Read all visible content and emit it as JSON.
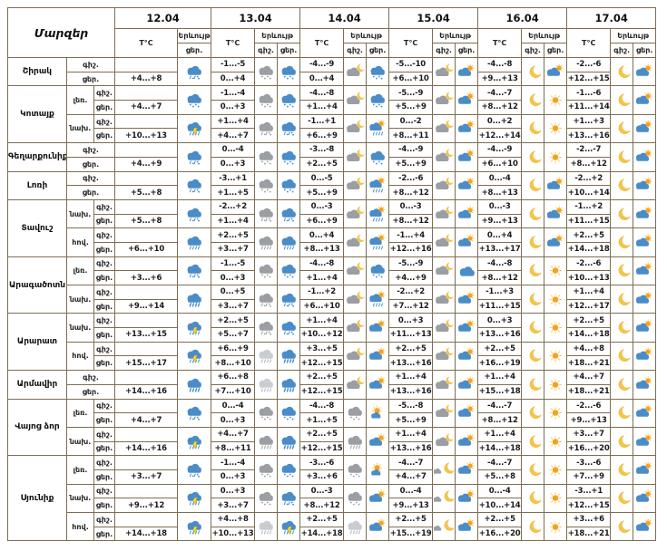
{
  "header": {
    "regions_label": "Մարզեր",
    "dates": [
      "12.04",
      "13.04",
      "14.04",
      "15.04",
      "16.04",
      "17.04"
    ],
    "temp_label": "T°C",
    "phenomenon_label": "Երևույթ",
    "night_label": "գիշ.",
    "day_label": "ցեր."
  },
  "colors": {
    "border": "#7d6e52",
    "cloud_blue": "#4a8cc7",
    "cloud_gray": "#9b9ea3",
    "cloud_lightgray": "#c9cdd2",
    "lightgray_precip": "#aab4bd",
    "sun_moon_yellow": "#f5c544",
    "sun_core_orange": "#f6a21f",
    "lightning_yellow": "#f9d81f",
    "text": "#1a1a1a"
  },
  "regions": [
    {
      "name": "Շիրակ",
      "rows": [
        {
          "zone": null,
          "cells": [
            {
              "tn": "",
              "td": "+4...+8",
              "icn": null,
              "icd": "cloud-sleet-blue"
            },
            {
              "tn": "-1...-5",
              "td": "0...+4",
              "icn": "cloud-snow-gray",
              "icd": "cloud-snow-blue"
            },
            {
              "tn": "-4...-9",
              "td": "0...+4",
              "icn": "cloud-moon",
              "icd": "cloud-snow-blue"
            },
            {
              "tn": "-5...-10",
              "td": "+6...+10",
              "icn": "cloud-moon",
              "icd": "cloud-sun"
            },
            {
              "tn": "-4...-8",
              "td": "+9...+13",
              "icn": "moon",
              "icd": "cloud-sun"
            },
            {
              "tn": "-2...-6",
              "td": "+12...+15",
              "icn": "moon",
              "icd": "cloud-sun"
            }
          ]
        }
      ]
    },
    {
      "name": "Կոտայք",
      "rows": [
        {
          "zone": "լեռ.",
          "cells": [
            {
              "tn": "",
              "td": "+4...+7",
              "icn": null,
              "icd": "cloud-snow-blue"
            },
            {
              "tn": "-1...-4",
              "td": "0...+3",
              "icn": "cloud-snow-gray",
              "icd": "cloud-snow-blue"
            },
            {
              "tn": "-4...-8",
              "td": "+1...+4",
              "icn": "cloud-moon",
              "icd": "cloud-snow-blue"
            },
            {
              "tn": "-5...-9",
              "td": "+5...+9",
              "icn": "cloud-moon",
              "icd": "cloud-sun"
            },
            {
              "tn": "-4...-7",
              "td": "+8...+12",
              "icn": "moon",
              "icd": "sun"
            },
            {
              "tn": "-1...-6",
              "td": "+11...+14",
              "icn": "moon",
              "icd": "cloud-sun"
            }
          ]
        },
        {
          "zone": "նախ.",
          "cells": [
            {
              "tn": "",
              "td": "+10...+13",
              "icn": null,
              "icd": "cloud-thunder-blue"
            },
            {
              "tn": "+1...+4",
              "td": "+4...+7",
              "icn": "cloud-sleet-gray",
              "icd": "cloud-sleet-blue"
            },
            {
              "tn": "-1...+1",
              "td": "+6...+9",
              "icn": "cloud-moon",
              "icd": "cloud-sun-rain"
            },
            {
              "tn": "0...-2",
              "td": "+8...+11",
              "icn": "cloud-moon",
              "icd": "cloud-sun"
            },
            {
              "tn": "0...+2",
              "td": "+12...+14",
              "icn": "moon",
              "icd": "sun"
            },
            {
              "tn": "+1...+3",
              "td": "+13...+16",
              "icn": "moon",
              "icd": "cloud-sun"
            }
          ]
        }
      ]
    },
    {
      "name": "Գեղարքունիք",
      "rows": [
        {
          "zone": null,
          "cells": [
            {
              "tn": "",
              "td": "+4...+9",
              "icn": null,
              "icd": "cloud-sleet-blue"
            },
            {
              "tn": "0...-4",
              "td": "0...+3",
              "icn": "cloud-snow-gray",
              "icd": "cloud-snow-blue"
            },
            {
              "tn": "-3...-8",
              "td": "+2...+5",
              "icn": "cloud-moon",
              "icd": "cloud-snow-blue"
            },
            {
              "tn": "-4...-9",
              "td": "+5...+9",
              "icn": "cloud-moon",
              "icd": "cloud-sun"
            },
            {
              "tn": "-4...-9",
              "td": "+6...+10",
              "icn": "moon",
              "icd": "sun"
            },
            {
              "tn": "-2...-7",
              "td": "+8...+12",
              "icn": "moon",
              "icd": "cloud-sun"
            }
          ]
        }
      ]
    },
    {
      "name": "Լոռի",
      "rows": [
        {
          "zone": null,
          "cells": [
            {
              "tn": "",
              "td": "+5...+8",
              "icn": null,
              "icd": "cloud-sleet-blue"
            },
            {
              "tn": "-3...+1",
              "td": "+1...+5",
              "icn": "cloud-snow-gray",
              "icd": "cloud-snow-blue"
            },
            {
              "tn": "0...-5",
              "td": "+5...+9",
              "icn": "cloud-moon",
              "icd": "cloud-sun-rain"
            },
            {
              "tn": "-2...-6",
              "td": "+8...+12",
              "icn": "cloud-moon",
              "icd": "cloud-sun"
            },
            {
              "tn": "0...-4",
              "td": "+8...+13",
              "icn": "moon",
              "icd": "cloud-sun"
            },
            {
              "tn": "-2...+2",
              "td": "+10...+14",
              "icn": "moon",
              "icd": "cloud-sun"
            }
          ]
        }
      ]
    },
    {
      "name": "Տավուշ",
      "rows": [
        {
          "zone": "նախ.",
          "cells": [
            {
              "tn": "",
              "td": "+5...+8",
              "icn": null,
              "icd": "cloud-sleet-blue"
            },
            {
              "tn": "-2...+2",
              "td": "+1...+4",
              "icn": "cloud-sleet-gray",
              "icd": "cloud-sleet-blue"
            },
            {
              "tn": "0...-3",
              "td": "+6...+9",
              "icn": "cloud-moon",
              "icd": "cloud-sun-rain"
            },
            {
              "tn": "0...-3",
              "td": "+8...+12",
              "icn": "cloud-moon",
              "icd": "cloud-sun"
            },
            {
              "tn": "0...-3",
              "td": "+9...+13",
              "icn": "moon",
              "icd": "cloud-sun"
            },
            {
              "tn": "-1...+2",
              "td": "+11...+15",
              "icn": "moon",
              "icd": "cloud-sun"
            }
          ]
        },
        {
          "zone": "հով.",
          "cells": [
            {
              "tn": "",
              "td": "+6...+10",
              "icn": null,
              "icd": "cloud-rain-blue"
            },
            {
              "tn": "+2...+5",
              "td": "+3...+7",
              "icn": "cloud-rain-gray",
              "icd": "cloud-rain-blue"
            },
            {
              "tn": "0...+4",
              "td": "+8...+13",
              "icn": "cloud-moon",
              "icd": "cloud-sun-rain"
            },
            {
              "tn": "-1...+4",
              "td": "+12...+16",
              "icn": "cloud-moon",
              "icd": "cloud-sun"
            },
            {
              "tn": "0...+4",
              "td": "+13...+17",
              "icn": "moon",
              "icd": "cloud-sun"
            },
            {
              "tn": "+2...+5",
              "td": "+14...+18",
              "icn": "moon",
              "icd": "cloud-sun"
            }
          ]
        }
      ]
    },
    {
      "name": "Արագածոտն",
      "rows": [
        {
          "zone": "լեռ.",
          "cells": [
            {
              "tn": "",
              "td": "+3...+6",
              "icn": null,
              "icd": "cloud-sleet-blue"
            },
            {
              "tn": "-1...-5",
              "td": "0...+3",
              "icn": "cloud-snow-gray",
              "icd": "cloud-snow-blue"
            },
            {
              "tn": "-4...-8",
              "td": "+1...+4",
              "icn": "cloud-moon",
              "icd": "cloud-snow-blue"
            },
            {
              "tn": "-5...-9",
              "td": "+4...+9",
              "icn": "cloud-moon",
              "icd": "cloud-blue"
            },
            {
              "tn": "-4...-8",
              "td": "+8...+12",
              "icn": "moon",
              "icd": "sun"
            },
            {
              "tn": "-2...-6",
              "td": "+10...+13",
              "icn": "moon",
              "icd": "cloud-sun"
            }
          ]
        },
        {
          "zone": "նախ.",
          "cells": [
            {
              "tn": "",
              "td": "+9...+14",
              "icn": null,
              "icd": "cloud-heavyrain-blue"
            },
            {
              "tn": "0...+5",
              "td": "+3...+7",
              "icn": "cloud-sleet-gray",
              "icd": "cloud-sleet-blue"
            },
            {
              "tn": "-1...+2",
              "td": "+6...+10",
              "icn": "cloud-moon",
              "icd": "cloud-sun-rain"
            },
            {
              "tn": "-2...+2",
              "td": "+7...+12",
              "icn": "cloud-moon",
              "icd": "cloud-sun"
            },
            {
              "tn": "-1...+3",
              "td": "+11...+15",
              "icn": "moon",
              "icd": "sun"
            },
            {
              "tn": "+1...+4",
              "td": "+12...+17",
              "icn": "moon",
              "icd": "cloud-sun"
            }
          ]
        }
      ]
    },
    {
      "name": "Արարատ",
      "rows": [
        {
          "zone": "նախ.",
          "cells": [
            {
              "tn": "",
              "td": "+13...+15",
              "icn": null,
              "icd": "cloud-thunder-blue"
            },
            {
              "tn": "+2...+5",
              "td": "+5...+7",
              "icn": "cloud-sleet-gray",
              "icd": "cloud-sleet-blue"
            },
            {
              "tn": "+1...+4",
              "td": "+10...+12",
              "icn": "cloud-moon",
              "icd": "cloud-sun"
            },
            {
              "tn": "0...+3",
              "td": "+11...+13",
              "icn": "cloud-moon",
              "icd": "cloud-sun"
            },
            {
              "tn": "0...+3",
              "td": "+13...+16",
              "icn": "moon",
              "icd": "sun"
            },
            {
              "tn": "+2...+5",
              "td": "+14...+18",
              "icn": "moon",
              "icd": "cloud-sun"
            }
          ]
        },
        {
          "zone": "հով.",
          "cells": [
            {
              "tn": "",
              "td": "+15...+17",
              "icn": null,
              "icd": "cloud-thunder-blue"
            },
            {
              "tn": "+6...+9",
              "td": "+8...+10",
              "icn": "cloud-rain-lightgray",
              "icd": "cloud-heavyrain-blue"
            },
            {
              "tn": "+3...+5",
              "td": "+12...+15",
              "icn": "cloud-moon",
              "icd": "cloud-sun"
            },
            {
              "tn": "+2...+5",
              "td": "+13...+16",
              "icn": "cloud-moon",
              "icd": "cloud-sun"
            },
            {
              "tn": "+2...+5",
              "td": "+16...+19",
              "icn": "moon",
              "icd": "sun"
            },
            {
              "tn": "+4...+8",
              "td": "+18...+21",
              "icn": "moon",
              "icd": "cloud-sun"
            }
          ]
        }
      ]
    },
    {
      "name": "Արմավիր",
      "rows": [
        {
          "zone": null,
          "cells": [
            {
              "tn": "",
              "td": "+14...+16",
              "icn": null,
              "icd": "cloud-heavyrain-blue"
            },
            {
              "tn": "+6...+8",
              "td": "+7...+10",
              "icn": "cloud-rain-lightgray",
              "icd": "cloud-heavyrain-blue"
            },
            {
              "tn": "+2...+5",
              "td": "+12...+15",
              "icn": "cloud-moon",
              "icd": "cloud-sun"
            },
            {
              "tn": "+1...+4",
              "td": "+13...+16",
              "icn": "cloud-moon",
              "icd": "cloud-sun"
            },
            {
              "tn": "+1...+4",
              "td": "+15...+18",
              "icn": "moon",
              "icd": "sun"
            },
            {
              "tn": "+4...+7",
              "td": "+18...+21",
              "icn": "moon",
              "icd": "cloud-sun"
            }
          ]
        }
      ]
    },
    {
      "name": "Վայոց ձոր",
      "rows": [
        {
          "zone": "լեռ.",
          "cells": [
            {
              "tn": "",
              "td": "+4...+7",
              "icn": null,
              "icd": "cloud-sleet-blue"
            },
            {
              "tn": "0...-4",
              "td": "0...+3",
              "icn": "cloud-snow-gray",
              "icd": "cloud-snow-blue"
            },
            {
              "tn": "-4...-8",
              "td": "+1...+5",
              "icn": "cloud-snow-gray",
              "icd": "sun-cloud"
            },
            {
              "tn": "-5...-8",
              "td": "+5...+9",
              "icn": "cloud-moon",
              "icd": "cloud-sun"
            },
            {
              "tn": "-4...-7",
              "td": "+8...+12",
              "icn": "moon",
              "icd": "sun"
            },
            {
              "tn": "-2...-6",
              "td": "+9...+13",
              "icn": "moon",
              "icd": "cloud-sun"
            }
          ]
        },
        {
          "zone": "նախ.",
          "cells": [
            {
              "tn": "",
              "td": "+14...+16",
              "icn": null,
              "icd": "cloud-thunder-blue"
            },
            {
              "tn": "+4...+7",
              "td": "+8...+11",
              "icn": "cloud-rain-gray",
              "icd": "cloud-heavyrain-blue"
            },
            {
              "tn": "+2...+5",
              "td": "+12...+15",
              "icn": "cloud-rain-gray",
              "icd": "cloud-sun"
            },
            {
              "tn": "+1...+4",
              "td": "+13...+16",
              "icn": "cloud-moon",
              "icd": "cloud-sun"
            },
            {
              "tn": "+1...+4",
              "td": "+14...+18",
              "icn": "moon",
              "icd": "sun"
            },
            {
              "tn": "+3...+7",
              "td": "+16...+20",
              "icn": "moon",
              "icd": "cloud-sun"
            }
          ]
        }
      ]
    },
    {
      "name": "Սյունիք",
      "rows": [
        {
          "zone": "լեռ.",
          "cells": [
            {
              "tn": "",
              "td": "+3...+7",
              "icn": null,
              "icd": "cloud-sleet-blue"
            },
            {
              "tn": "-1...-4",
              "td": "0...+3",
              "icn": "cloud-snow-gray",
              "icd": "cloud-snow-blue"
            },
            {
              "tn": "-3...-6",
              "td": "+3...+6",
              "icn": "cloud-snow-gray",
              "icd": "sun-cloud"
            },
            {
              "tn": "-4...-7",
              "td": "+4...+7",
              "icn": "moon-cloud",
              "icd": "cloud-sun"
            },
            {
              "tn": "-4...-7",
              "td": "+5...+8",
              "icn": "moon",
              "icd": "sun"
            },
            {
              "tn": "-3...-6",
              "td": "+7...+9",
              "icn": "moon",
              "icd": "cloud-sun"
            }
          ]
        },
        {
          "zone": "նախ.",
          "cells": [
            {
              "tn": "",
              "td": "+9...+12",
              "icn": null,
              "icd": "cloud-thunder-blue"
            },
            {
              "tn": "0...+3",
              "td": "+3...+7",
              "icn": "cloud-snow-gray",
              "icd": "cloud-sleet-blue"
            },
            {
              "tn": "0...-3",
              "td": "+8...+12",
              "icn": "cloud-snow-gray",
              "icd": "cloud-sun"
            },
            {
              "tn": "0...-4",
              "td": "+9...+13",
              "icn": "moon-cloud",
              "icd": "cloud-sun"
            },
            {
              "tn": "0...-4",
              "td": "+10...+14",
              "icn": "moon",
              "icd": "sun"
            },
            {
              "tn": "-3...+1",
              "td": "+12...+15",
              "icn": "moon",
              "icd": "cloud-sun"
            }
          ]
        },
        {
          "zone": "հով.",
          "cells": [
            {
              "tn": "",
              "td": "+14...+18",
              "icn": null,
              "icd": "cloud-thunder-blue"
            },
            {
              "tn": "+4...+8",
              "td": "+10...+13",
              "icn": "cloud-rain-lightgray",
              "icd": "cloud-thunder-blue"
            },
            {
              "tn": "+2...+5",
              "td": "+14...+18",
              "icn": "cloud-rain-lightgray",
              "icd": "cloud-sun"
            },
            {
              "tn": "+2...+5",
              "td": "+15...+19",
              "icn": "moon-cloud",
              "icd": "cloud-sun"
            },
            {
              "tn": "+2...+5",
              "td": "+16...+20",
              "icn": "moon",
              "icd": "sun"
            },
            {
              "tn": "+3...+6",
              "td": "+18...+21",
              "icn": "moon",
              "icd": "cloud-sun"
            }
          ]
        }
      ]
    }
  ]
}
